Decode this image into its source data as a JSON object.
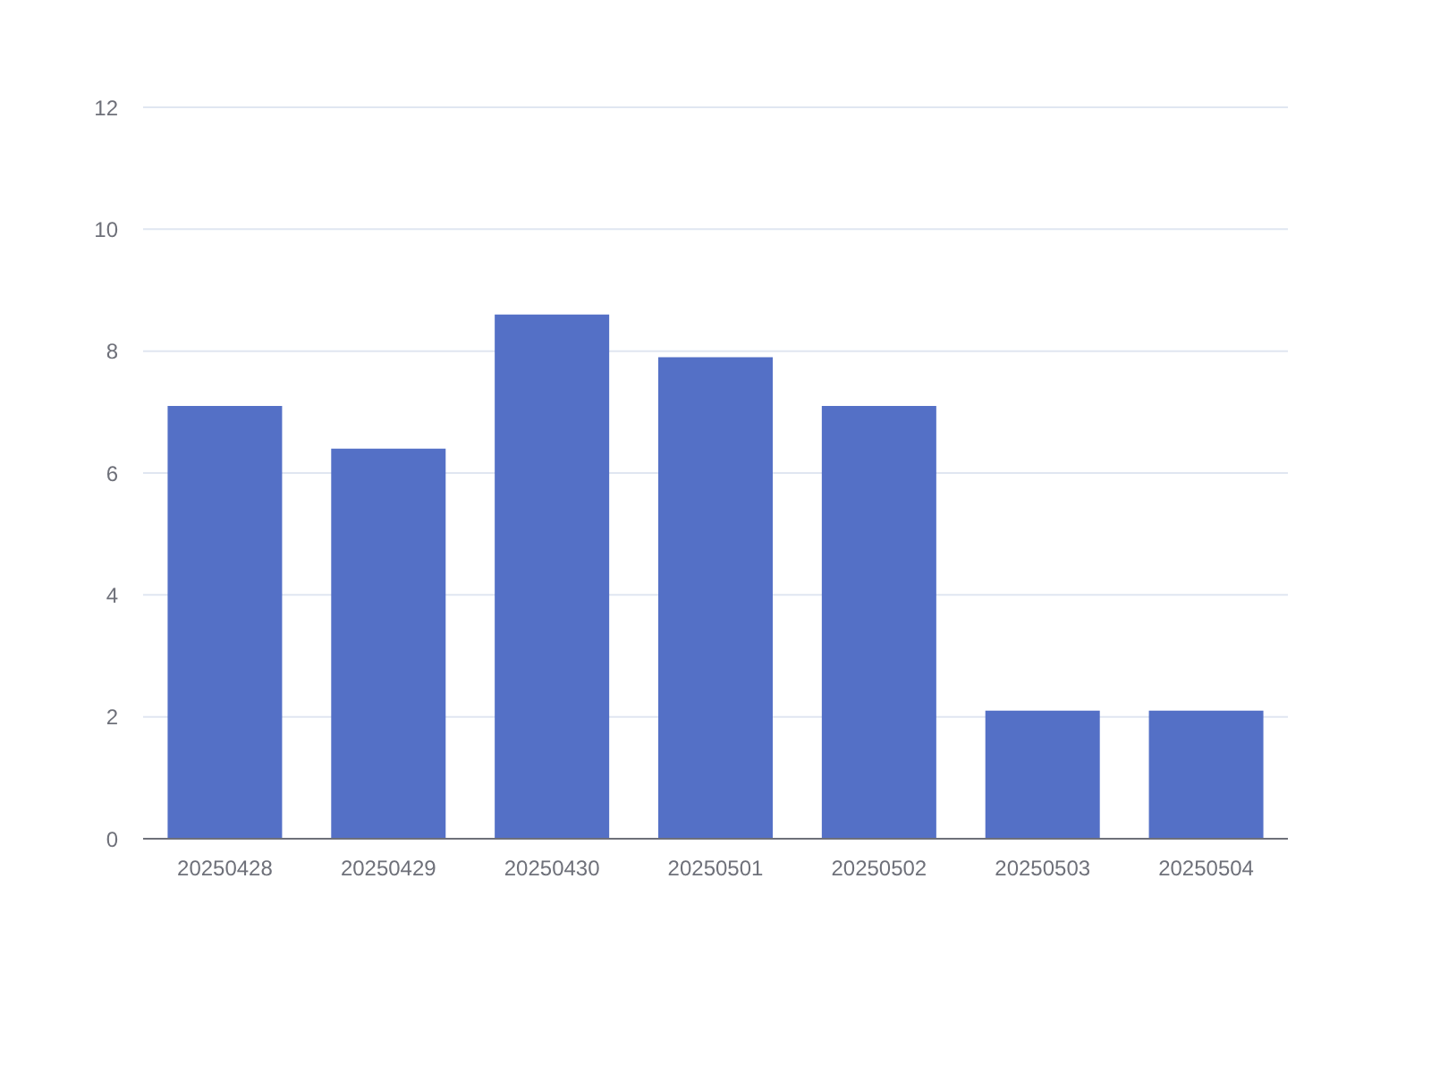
{
  "chart_data": {
    "type": "bar",
    "categories": [
      "20250428",
      "20250429",
      "20250430",
      "20250501",
      "20250502",
      "20250503",
      "20250504"
    ],
    "values": [
      7.1,
      6.4,
      8.6,
      7.9,
      7.1,
      2.1,
      2.1
    ],
    "color": "#5470c6",
    "ylim": [
      0,
      12
    ],
    "yticks": [
      0,
      2,
      4,
      6,
      8,
      10,
      12
    ],
    "grid": "y"
  }
}
